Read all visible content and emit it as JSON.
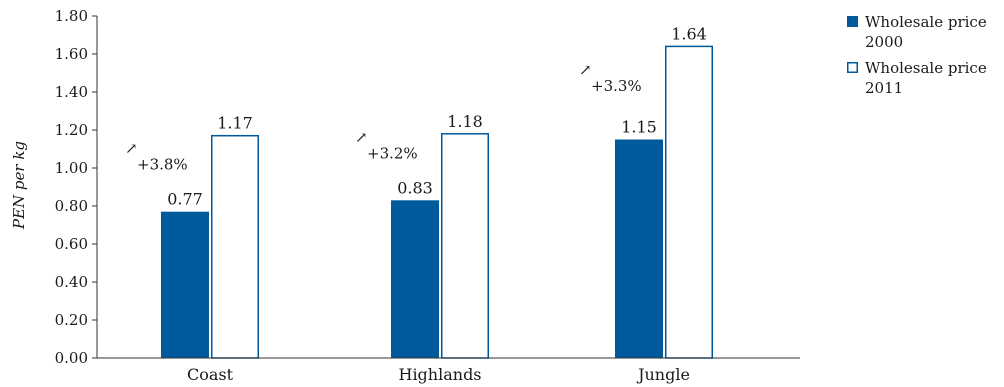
{
  "chart_data": {
    "type": "bar",
    "categories": [
      "Coast",
      "Highlands",
      "Jungle"
    ],
    "series": [
      {
        "name": "Wholesale price 2000",
        "values": [
          0.77,
          0.83,
          1.15
        ],
        "color": "#005a9c",
        "style": "filled"
      },
      {
        "name": "Wholesale price 2011",
        "values": [
          1.17,
          1.18,
          1.64
        ],
        "color": "#005a9c",
        "style": "outline"
      }
    ],
    "ylabel": "PEN per kg",
    "ylim": [
      0,
      1.8
    ],
    "yticks": [
      "0.00",
      "0.20",
      "0.40",
      "0.60",
      "0.80",
      "1.00",
      "1.20",
      "1.40",
      "1.60",
      "1.80"
    ],
    "annotations": [
      {
        "category": "Coast",
        "arrow": "↗",
        "text": "+3.8%"
      },
      {
        "category": "Highlands",
        "arrow": "↗",
        "text": "+3.2%"
      },
      {
        "category": "Jungle",
        "arrow": "↗",
        "text": "+3.3%"
      }
    ],
    "legend": {
      "position": "right",
      "entries": [
        {
          "line1": "Wholesale price",
          "line2": "2000",
          "marker": "■"
        },
        {
          "line1": "Wholesale price",
          "line2": "2011",
          "marker": "□"
        }
      ]
    },
    "grid": false
  }
}
